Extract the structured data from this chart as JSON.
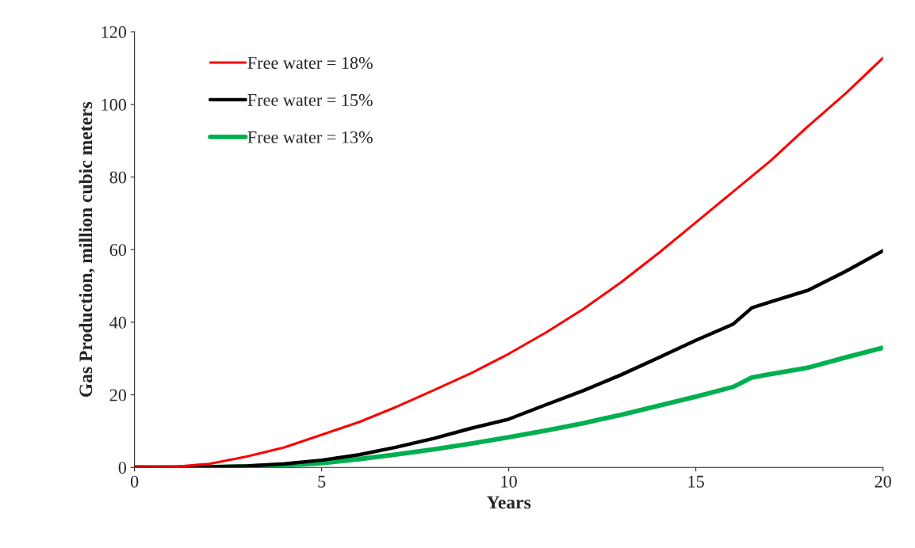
{
  "chart_data": {
    "type": "line",
    "xlabel": "Years",
    "ylabel": "Gas Production, million cubic meters",
    "xlim": [
      0,
      20
    ],
    "xticks": [
      0,
      5,
      10,
      15,
      20
    ],
    "ylim": [
      0,
      120
    ],
    "yticks": [
      0,
      20,
      40,
      60,
      80,
      100,
      120
    ],
    "grid": false,
    "legend": "top left",
    "marker": "none",
    "line_style": "solid",
    "series": [
      {
        "name": "Free water = 18%",
        "color": "#ff0000",
        "x": [
          0,
          1,
          2,
          3,
          4,
          5,
          6,
          7,
          8,
          9,
          10,
          11,
          12,
          13,
          14,
          15,
          16,
          17,
          18,
          19,
          20
        ],
        "values": [
          0,
          0.1,
          1,
          3,
          5.5,
          9,
          12.5,
          16.7,
          21.3,
          26,
          31.3,
          37.2,
          43.7,
          51,
          59,
          67.5,
          76,
          84.5,
          94,
          103,
          112.8
        ]
      },
      {
        "name": "Free water = 15%",
        "color": "#000000",
        "x": [
          0,
          1,
          2,
          3,
          4,
          5,
          6,
          7,
          8,
          9,
          10,
          11,
          12,
          13,
          14,
          15,
          16,
          16.5,
          17,
          18,
          19,
          20
        ],
        "values": [
          0,
          0,
          0.2,
          0.4,
          1,
          2,
          3.5,
          5.6,
          8,
          10.8,
          13.3,
          17.3,
          21.2,
          25.5,
          30.2,
          35,
          39.5,
          44,
          45.6,
          48.8,
          54,
          59.7
        ]
      },
      {
        "name": "Free water = 13%",
        "color": "#00b050",
        "x": [
          0,
          1,
          2,
          3,
          4,
          5,
          6,
          7,
          8,
          9,
          10,
          11,
          12,
          13,
          14,
          15,
          16,
          16.5,
          17,
          18,
          19,
          20
        ],
        "values": [
          0,
          0,
          0.1,
          0.3,
          0.6,
          1.2,
          2.3,
          3.6,
          5,
          6.6,
          8.3,
          10.2,
          12.2,
          14.5,
          17,
          19.5,
          22.2,
          24.8,
          25.7,
          27.5,
          30.3,
          33
        ]
      }
    ]
  }
}
